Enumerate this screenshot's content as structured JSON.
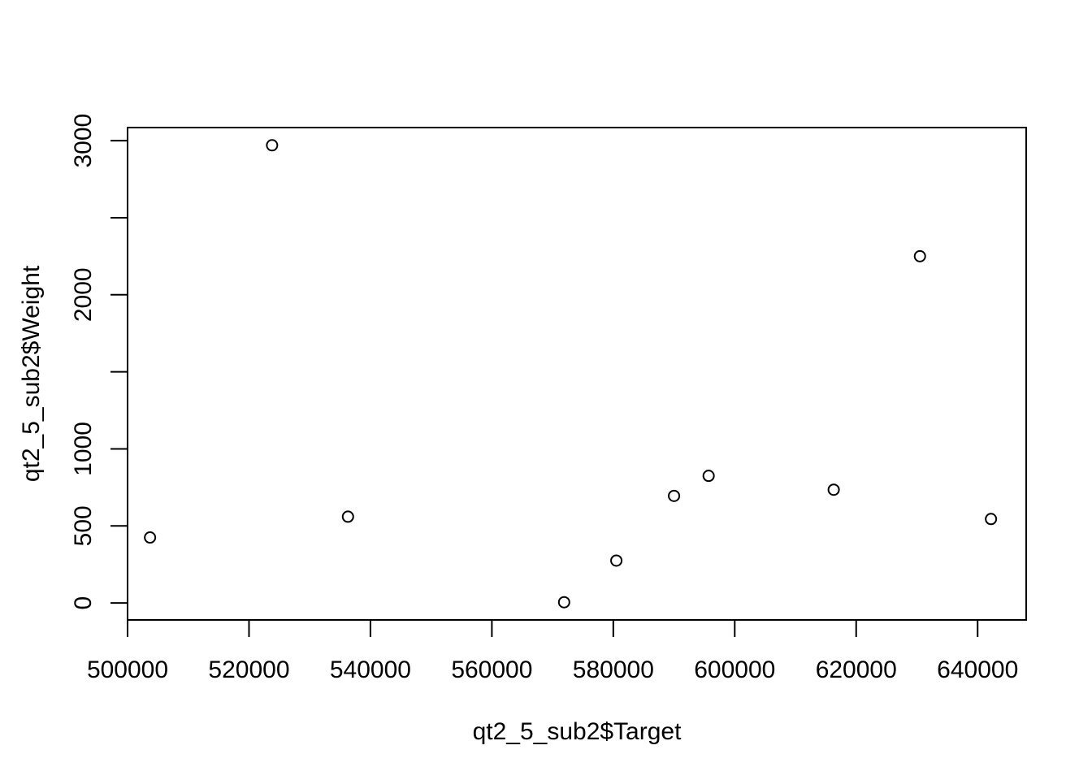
{
  "chart_data": {
    "type": "scatter",
    "title": "",
    "xlabel": "qt2_5_sub2$Target",
    "ylabel": "qt2_5_sub2$Weight",
    "xlim": [
      500000,
      648000
    ],
    "ylim": [
      -110,
      3085
    ],
    "x_ticks": [
      500000,
      520000,
      540000,
      560000,
      580000,
      600000,
      620000,
      640000
    ],
    "x_tick_labels": [
      "500000",
      "520000",
      "540000",
      "560000",
      "580000",
      "600000",
      "620000",
      "640000"
    ],
    "y_ticks": [
      0,
      500,
      1000,
      1500,
      2000,
      2500,
      3000
    ],
    "y_tick_labels": [
      "0",
      "500",
      "1000",
      "",
      "2000",
      "",
      "3000"
    ],
    "grid": false,
    "legend": "none",
    "marker": "open-circle",
    "points": [
      {
        "x": 503700,
        "y": 425
      },
      {
        "x": 523800,
        "y": 2970
      },
      {
        "x": 536300,
        "y": 560
      },
      {
        "x": 571900,
        "y": 5
      },
      {
        "x": 580500,
        "y": 275
      },
      {
        "x": 590000,
        "y": 695
      },
      {
        "x": 595700,
        "y": 825
      },
      {
        "x": 616300,
        "y": 735
      },
      {
        "x": 630500,
        "y": 2250
      },
      {
        "x": 642200,
        "y": 545
      }
    ],
    "colors": {
      "marker_stroke": "#000000",
      "axis": "#000000",
      "background": "#ffffff"
    }
  }
}
